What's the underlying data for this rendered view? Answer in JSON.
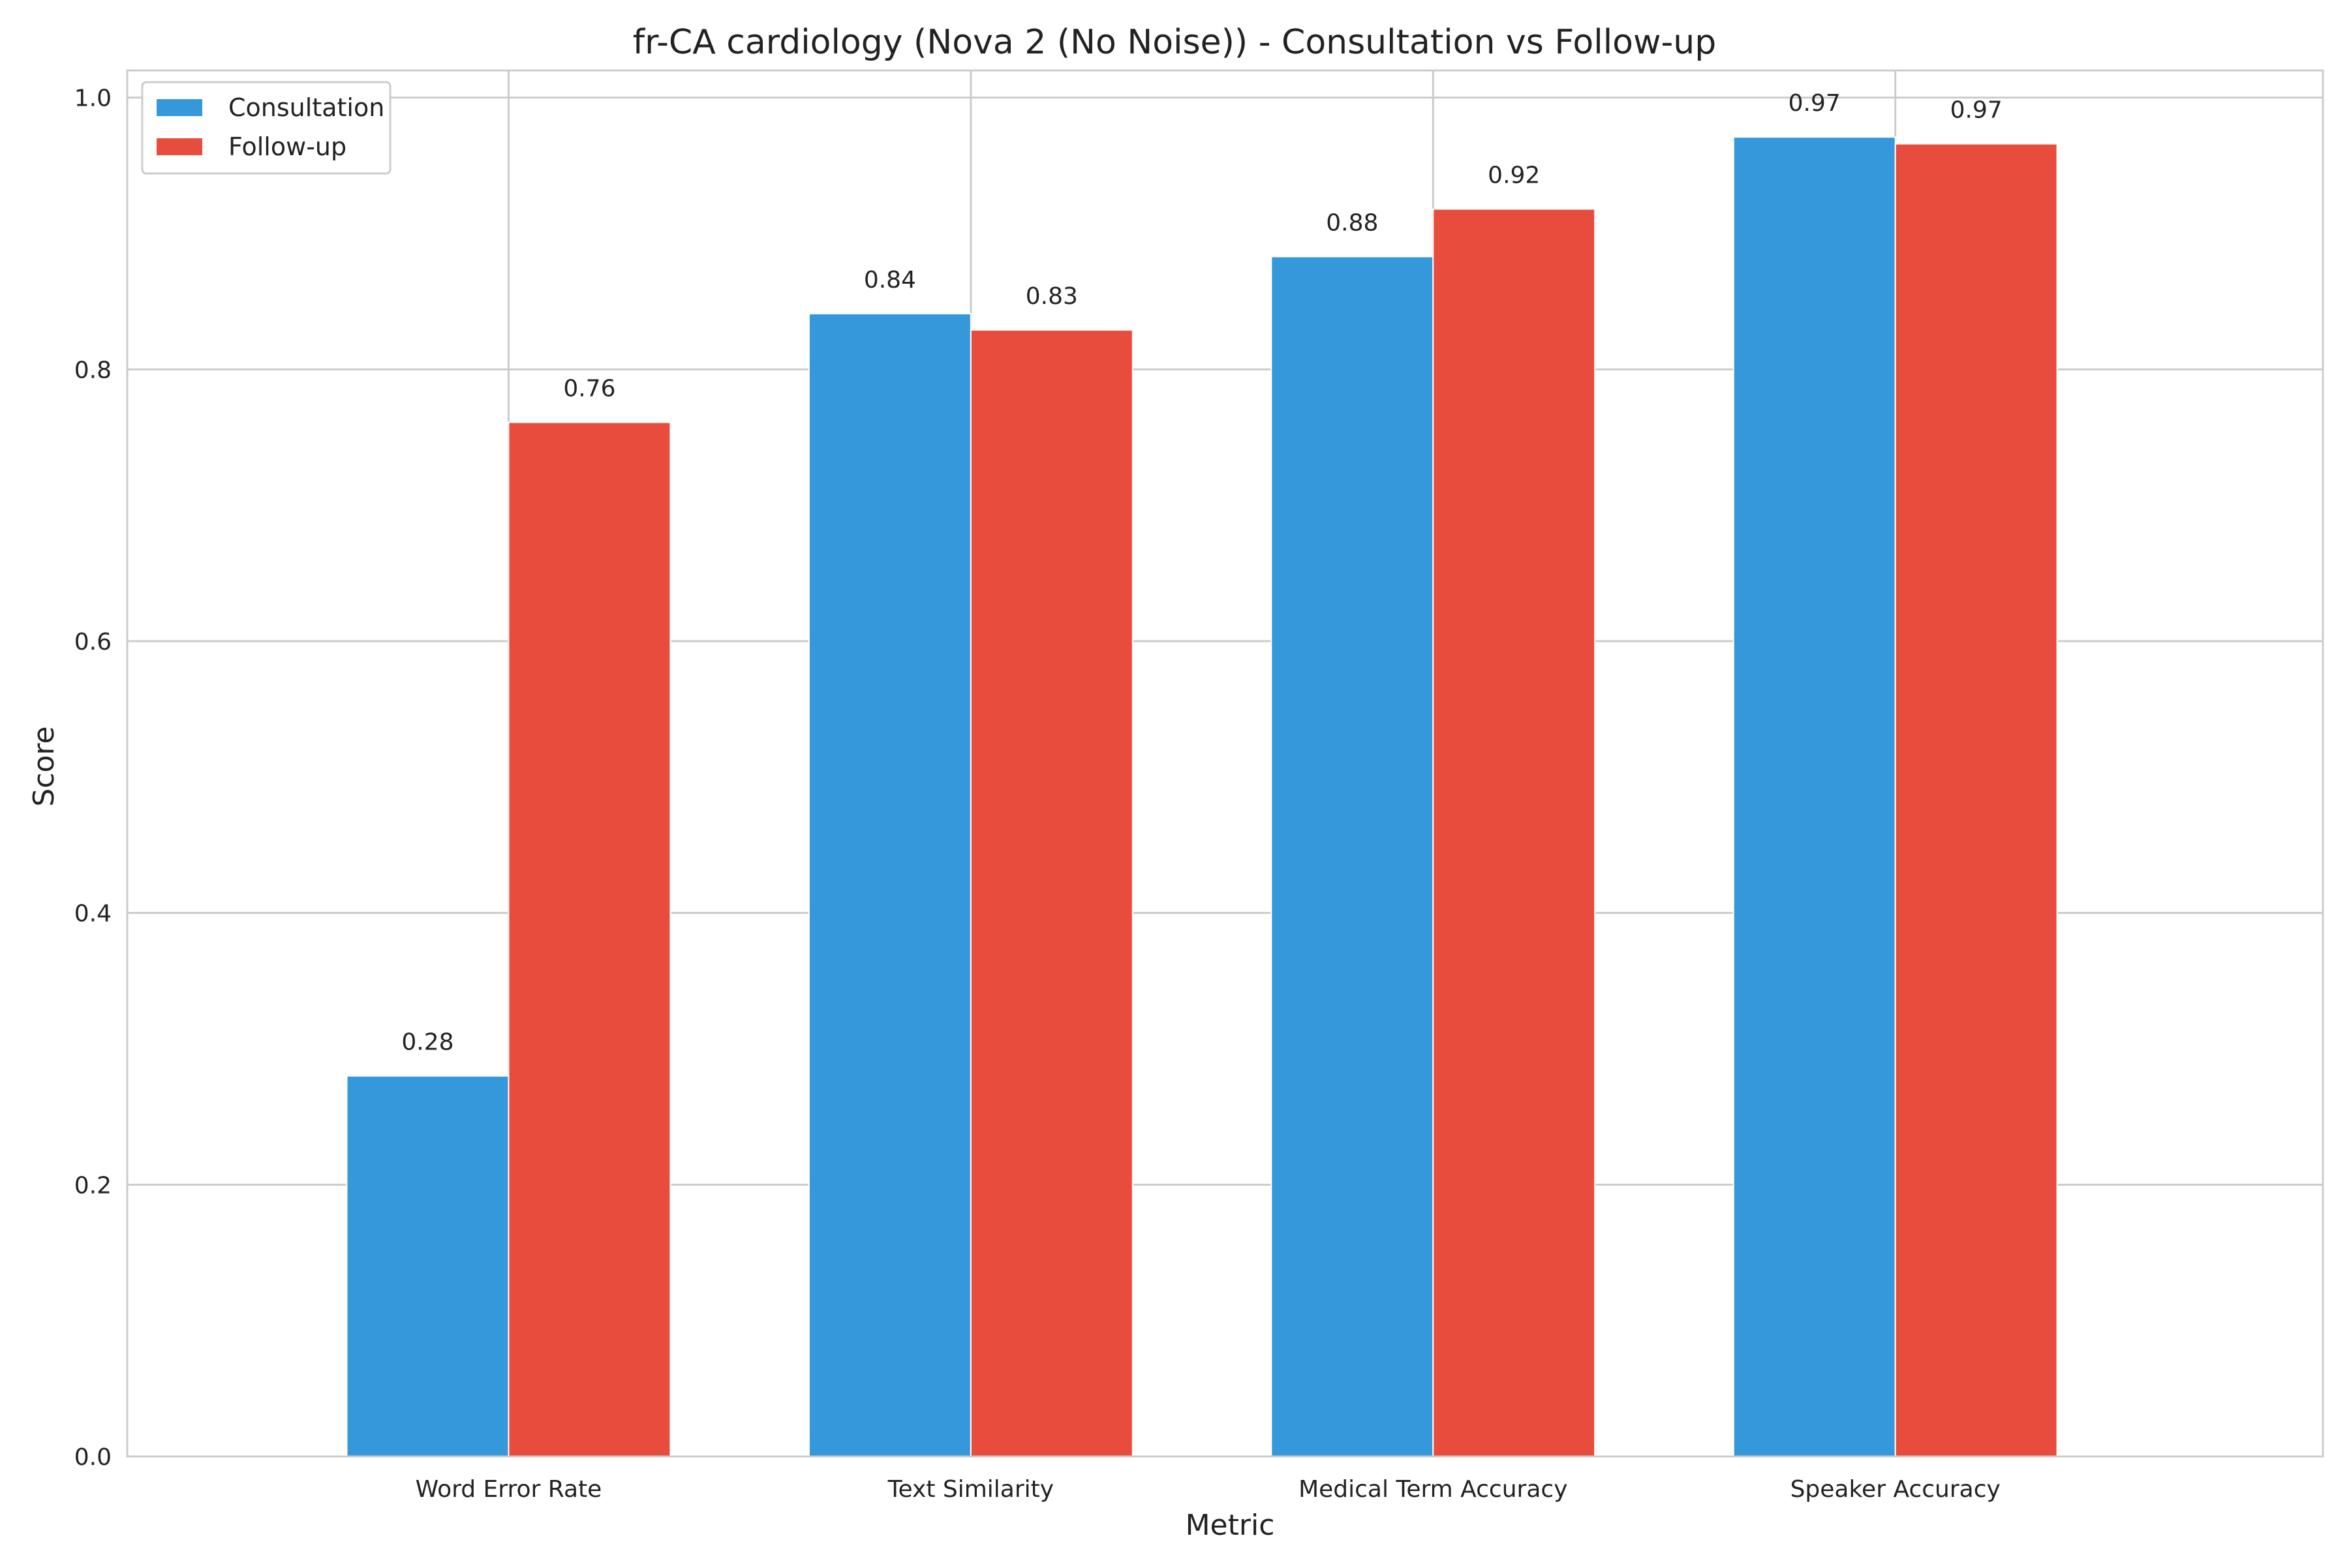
{
  "chart_data": {
    "type": "bar",
    "title": "fr-CA cardiology (Nova 2 (No Noise)) - Consultation vs Follow-up",
    "xlabel": "Metric",
    "ylabel": "Score",
    "ylim": [
      0,
      1.02
    ],
    "yticks": [
      "0.0",
      "0.2",
      "0.4",
      "0.6",
      "0.8",
      "1.0"
    ],
    "grid": true,
    "legend_position": "top-left",
    "categories": [
      "Word Error Rate",
      "Text Similarity",
      "Medical Term Accuracy",
      "Speaker Accuracy"
    ],
    "series": [
      {
        "name": "Consultation",
        "color": "#3498db",
        "values": [
          0.28,
          0.841,
          0.883,
          0.971
        ],
        "labels": [
          "0.28",
          "0.84",
          "0.88",
          "0.97"
        ]
      },
      {
        "name": "Follow-up",
        "color": "#e74c3c",
        "values": [
          0.761,
          0.829,
          0.918,
          0.966
        ],
        "labels": [
          "0.76",
          "0.83",
          "0.92",
          "0.97"
        ]
      }
    ]
  }
}
